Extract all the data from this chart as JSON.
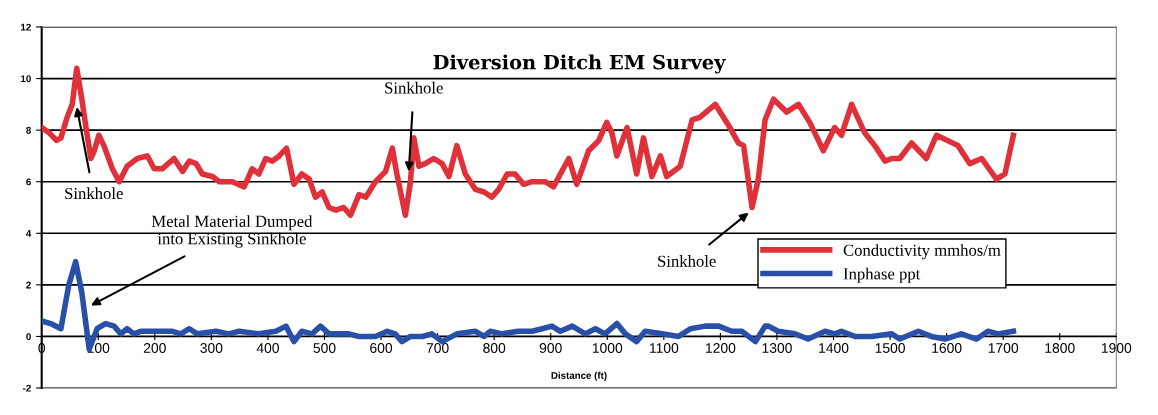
{
  "chart_data": {
    "type": "line",
    "title": "Diversion Ditch EM Survey",
    "xlabel": "Distance (ft)",
    "xlim": [
      0,
      1900
    ],
    "xticks": [
      0,
      100,
      200,
      300,
      400,
      500,
      600,
      700,
      800,
      900,
      1000,
      1100,
      1200,
      1300,
      1400,
      1500,
      1600,
      1700,
      1800,
      1900
    ],
    "ylim": [
      -2,
      12
    ],
    "yticks": [
      -2,
      0,
      2,
      4,
      6,
      8,
      10,
      12
    ],
    "grid": "y",
    "legend": "right",
    "marker": "none",
    "line_style": "solid",
    "series": [
      {
        "name": "Conductivity mmhos/m",
        "color": "#e0303a",
        "x": [
          0,
          13,
          26,
          34,
          45,
          54,
          62,
          71,
          79,
          87,
          93,
          101,
          110,
          125,
          137,
          151,
          169,
          187,
          199,
          213,
          234,
          249,
          261,
          273,
          284,
          302,
          314,
          337,
          358,
          372,
          384,
          396,
          408,
          420,
          433,
          446,
          460,
          473,
          484,
          496,
          508,
          520,
          534,
          546,
          561,
          573,
          590,
          608,
          620,
          628,
          643,
          652,
          658,
          667,
          678,
          693,
          708,
          720,
          734,
          749,
          767,
          782,
          796,
          808,
          823,
          837,
          852,
          867,
          879,
          890,
          905,
          917,
          932,
          946,
          967,
          985,
          999,
          1008,
          1017,
          1035,
          1052,
          1064,
          1079,
          1094,
          1105,
          1129,
          1150,
          1164,
          1191,
          1214,
          1232,
          1241,
          1256,
          1267,
          1279,
          1294,
          1317,
          1338,
          1358,
          1382,
          1402,
          1414,
          1432,
          1455,
          1473,
          1491,
          1503,
          1517,
          1538,
          1564,
          1582,
          1620,
          1641,
          1662,
          1688,
          1703,
          1718
        ],
        "values": [
          8.1,
          7.9,
          7.6,
          7.7,
          8.5,
          9.0,
          10.4,
          9.2,
          8.0,
          6.9,
          7.2,
          7.8,
          7.4,
          6.5,
          6.0,
          6.6,
          6.9,
          7.0,
          6.5,
          6.5,
          6.9,
          6.4,
          6.8,
          6.7,
          6.3,
          6.2,
          6.0,
          6.0,
          5.8,
          6.5,
          6.3,
          6.9,
          6.8,
          7.0,
          7.3,
          5.9,
          6.3,
          6.1,
          5.4,
          5.6,
          5.0,
          4.9,
          5.0,
          4.7,
          5.5,
          5.4,
          6.0,
          6.4,
          7.3,
          6.3,
          4.7,
          6.0,
          7.7,
          6.6,
          6.7,
          6.9,
          6.7,
          6.2,
          7.4,
          6.3,
          5.7,
          5.6,
          5.4,
          5.7,
          6.3,
          6.3,
          5.9,
          6.0,
          6.0,
          6.0,
          5.8,
          6.3,
          6.9,
          5.9,
          7.2,
          7.6,
          8.3,
          7.9,
          7.0,
          8.1,
          6.3,
          7.7,
          6.2,
          7.0,
          6.2,
          6.6,
          8.4,
          8.5,
          9.0,
          8.2,
          7.5,
          7.4,
          5.0,
          6.1,
          8.4,
          9.2,
          8.7,
          9.0,
          8.3,
          7.2,
          8.1,
          7.8,
          9.0,
          7.9,
          7.4,
          6.8,
          6.9,
          6.9,
          7.5,
          6.9,
          7.8,
          7.4,
          6.7,
          6.9,
          6.1,
          6.3,
          7.8
        ]
      },
      {
        "name": "Inphase ppt",
        "color": "#2850a8",
        "x": [
          0,
          16,
          34,
          48,
          60,
          71,
          84,
          98,
          113,
          128,
          140,
          151,
          163,
          175,
          190,
          202,
          231,
          246,
          261,
          275,
          308,
          331,
          349,
          384,
          414,
          432,
          446,
          460,
          478,
          493,
          508,
          543,
          561,
          590,
          611,
          625,
          637,
          652,
          673,
          690,
          708,
          734,
          767,
          782,
          793,
          814,
          843,
          867,
          885,
          902,
          917,
          938,
          961,
          979,
          996,
          1017,
          1032,
          1052,
          1067,
          1097,
          1126,
          1147,
          1173,
          1197,
          1220,
          1238,
          1262,
          1279,
          1285,
          1302,
          1332,
          1355,
          1385,
          1402,
          1414,
          1438,
          1467,
          1503,
          1517,
          1550,
          1573,
          1597,
          1626,
          1653,
          1673,
          1691,
          1718
        ],
        "values": [
          0.6,
          0.5,
          0.3,
          2.0,
          2.9,
          1.7,
          -0.5,
          0.3,
          0.5,
          0.4,
          0.1,
          0.3,
          0.1,
          0.2,
          0.2,
          0.2,
          0.2,
          0.1,
          0.3,
          0.1,
          0.2,
          0.1,
          0.2,
          0.1,
          0.2,
          0.4,
          -0.2,
          0.2,
          0.1,
          0.4,
          0.1,
          0.1,
          0.0,
          0.0,
          0.2,
          0.1,
          -0.2,
          0.0,
          0.0,
          0.1,
          -0.2,
          0.1,
          0.2,
          0.0,
          0.2,
          0.1,
          0.2,
          0.2,
          0.3,
          0.4,
          0.2,
          0.4,
          0.1,
          0.3,
          0.1,
          0.5,
          0.1,
          -0.2,
          0.2,
          0.1,
          0.0,
          0.3,
          0.4,
          0.4,
          0.2,
          0.2,
          -0.2,
          0.4,
          0.4,
          0.2,
          0.1,
          -0.1,
          0.2,
          0.1,
          0.2,
          0.0,
          0.0,
          0.1,
          -0.1,
          0.2,
          0.0,
          -0.1,
          0.1,
          -0.1,
          0.2,
          0.1,
          0.2
        ]
      }
    ],
    "annotations": [
      {
        "text": "Sinkhole",
        "x": 62,
        "y": 8.9
      },
      {
        "text": "Sinkhole",
        "x": 649,
        "y": 6.4
      },
      {
        "text": "Metal Material Dumped\ninto Existing Sinkhole",
        "x": 87,
        "y": 1.2
      },
      {
        "text": "Sinkhole",
        "x": 1250,
        "y": 4.8
      }
    ]
  }
}
